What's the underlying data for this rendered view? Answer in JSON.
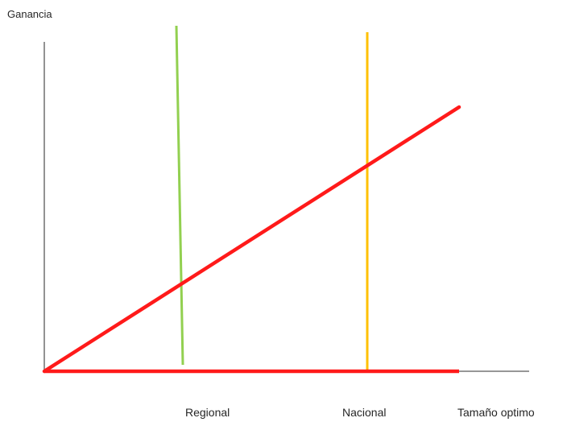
{
  "diagram": {
    "y_axis_label": "Ganancia",
    "x_axis_label": "Tamaño optimo",
    "marker_labels": {
      "regional": "Regional",
      "nacional": "Nacional"
    },
    "colors": {
      "axis": "#595959",
      "profit_line": "#ff1a1a",
      "regional_line": "#92d050",
      "nacional_line": "#ffc000",
      "text": "#262626"
    }
  }
}
